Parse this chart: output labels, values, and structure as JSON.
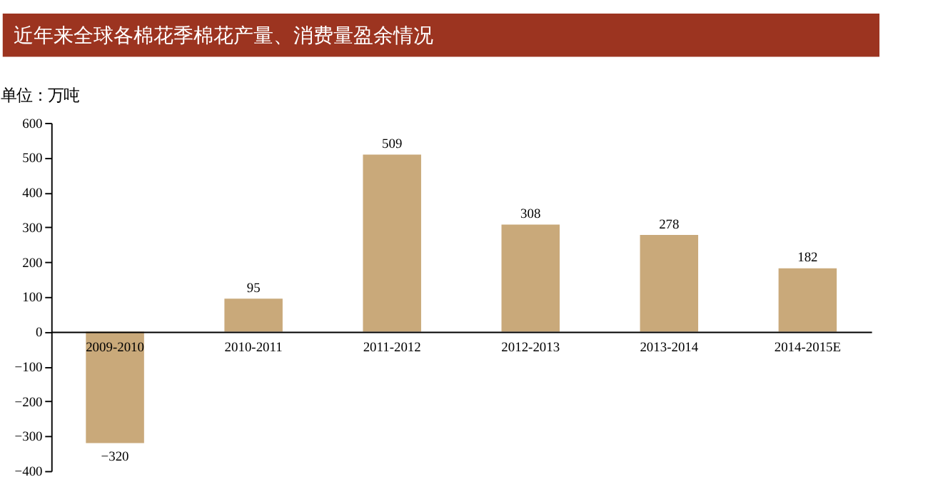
{
  "chart_data": {
    "type": "bar",
    "title": "近年来全球各棉花季棉花产量、消费量盈余情况",
    "ylabel": "单位：万吨",
    "categories": [
      "2009-2010",
      "2010-2011",
      "2011-2012",
      "2012-2013",
      "2013-2014",
      "2014-2015E"
    ],
    "values": [
      -320,
      95,
      509,
      308,
      278,
      182
    ],
    "color": "#c9a97a",
    "ylim": [
      -400,
      600
    ],
    "yticks": [
      -400,
      -300,
      -200,
      -100,
      0,
      100,
      200,
      300,
      400,
      500,
      600
    ],
    "grid": false,
    "data_labels": true
  }
}
